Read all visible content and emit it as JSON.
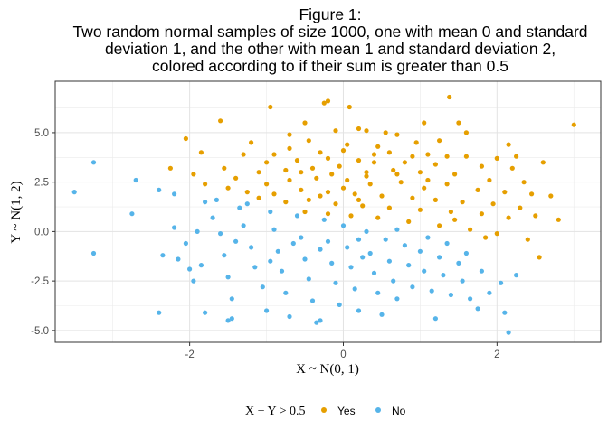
{
  "chart_data": {
    "type": "scatter",
    "title_lines": [
      "Figure 1:",
      "Two random normal samples of size 1000, one with mean 0 and standard",
      "deviation 1, and the other with mean 1 and standard deviation 2,",
      "colored according to if their sum is greater than 0.5"
    ],
    "xlabel": "X ~ N(0, 1)",
    "ylabel": "Y ~ N(1, 2)",
    "xlim": [
      -3.75,
      3.35
    ],
    "ylim": [
      -5.6,
      7.6
    ],
    "x_ticks": [
      -2,
      0,
      2
    ],
    "x_tick_labels": [
      "-2",
      "0",
      "2"
    ],
    "y_ticks": [
      -5.0,
      -2.5,
      0.0,
      2.5,
      5.0
    ],
    "y_tick_labels": [
      "-5.0",
      "-2.5",
      "0.0",
      "2.5",
      "5.0"
    ],
    "grid": true,
    "legend": {
      "position": "bottom",
      "title": "X + Y > 0.5",
      "entries": [
        {
          "label": "Yes",
          "color": "#E69F00"
        },
        {
          "label": "No",
          "color": "#56B4E9"
        }
      ]
    },
    "series": [
      {
        "name": "Yes",
        "color": "#E69F00",
        "points": [
          [
            -0.2,
            6.6
          ],
          [
            -0.25,
            6.5
          ],
          [
            0.08,
            6.3
          ],
          [
            1.38,
            6.8
          ],
          [
            3.0,
            5.4
          ],
          [
            -0.95,
            6.3
          ],
          [
            -1.6,
            5.6
          ],
          [
            -0.5,
            5.5
          ],
          [
            -0.1,
            5.1
          ],
          [
            0.2,
            5.2
          ],
          [
            0.3,
            5.1
          ],
          [
            1.05,
            5.5
          ],
          [
            1.5,
            5.5
          ],
          [
            0.55,
            5.0
          ],
          [
            0.7,
            4.9
          ],
          [
            -0.7,
            4.9
          ],
          [
            1.6,
            5.0
          ],
          [
            2.15,
            4.4
          ],
          [
            -2.05,
            4.7
          ],
          [
            -1.85,
            4.0
          ],
          [
            -1.2,
            4.5
          ],
          [
            -0.45,
            4.6
          ],
          [
            0.05,
            4.4
          ],
          [
            0.45,
            4.3
          ],
          [
            0.95,
            4.5
          ],
          [
            1.25,
            4.6
          ],
          [
            -0.7,
            4.2
          ],
          [
            -0.9,
            3.9
          ],
          [
            -0.3,
            4.0
          ],
          [
            0.0,
            4.1
          ],
          [
            0.6,
            4.0
          ],
          [
            1.1,
            3.9
          ],
          [
            1.6,
            3.8
          ],
          [
            2.0,
            3.7
          ],
          [
            2.25,
            3.8
          ],
          [
            2.6,
            3.5
          ],
          [
            -1.3,
            3.9
          ],
          [
            -1.0,
            3.5
          ],
          [
            -0.6,
            3.6
          ],
          [
            -0.2,
            3.7
          ],
          [
            0.2,
            3.6
          ],
          [
            0.4,
            3.5
          ],
          [
            0.8,
            3.5
          ],
          [
            1.2,
            3.4
          ],
          [
            1.35,
            3.8
          ],
          [
            1.8,
            3.3
          ],
          [
            2.2,
            3.2
          ],
          [
            -2.25,
            3.2
          ],
          [
            -1.55,
            3.2
          ],
          [
            -1.1,
            3.0
          ],
          [
            -0.75,
            3.1
          ],
          [
            -0.4,
            3.2
          ],
          [
            -0.05,
            3.3
          ],
          [
            0.3,
            3.0
          ],
          [
            0.65,
            3.1
          ],
          [
            1.0,
            3.0
          ],
          [
            1.45,
            2.9
          ],
          [
            1.9,
            2.6
          ],
          [
            2.35,
            2.5
          ],
          [
            -1.95,
            2.9
          ],
          [
            -1.8,
            2.4
          ],
          [
            -1.4,
            2.7
          ],
          [
            -1.0,
            2.4
          ],
          [
            -0.7,
            2.6
          ],
          [
            -0.35,
            2.7
          ],
          [
            0.05,
            2.6
          ],
          [
            0.35,
            2.4
          ],
          [
            0.75,
            2.5
          ],
          [
            1.05,
            2.2
          ],
          [
            1.35,
            2.4
          ],
          [
            1.75,
            2.1
          ],
          [
            2.1,
            2.0
          ],
          [
            2.45,
            1.9
          ],
          [
            2.7,
            1.8
          ],
          [
            -1.5,
            2.2
          ],
          [
            -1.25,
            2.0
          ],
          [
            -0.9,
            1.9
          ],
          [
            -0.55,
            2.1
          ],
          [
            -0.2,
            2.0
          ],
          [
            0.15,
            1.9
          ],
          [
            0.5,
            1.8
          ],
          [
            0.9,
            1.7
          ],
          [
            1.2,
            1.6
          ],
          [
            1.55,
            1.5
          ],
          [
            1.95,
            1.4
          ],
          [
            2.3,
            1.2
          ],
          [
            2.5,
            0.8
          ],
          [
            2.8,
            0.6
          ],
          [
            -1.1,
            1.7
          ],
          [
            -0.75,
            1.5
          ],
          [
            -0.45,
            1.6
          ],
          [
            -0.1,
            1.4
          ],
          [
            0.25,
            1.3
          ],
          [
            0.6,
            1.2
          ],
          [
            1.0,
            1.1
          ],
          [
            1.4,
            1.0
          ],
          [
            1.8,
            0.9
          ],
          [
            2.15,
            0.7
          ],
          [
            -0.5,
            1.0
          ],
          [
            -0.2,
            0.9
          ],
          [
            0.1,
            0.8
          ],
          [
            0.45,
            0.7
          ],
          [
            0.85,
            0.5
          ],
          [
            1.25,
            0.3
          ],
          [
            1.65,
            0.1
          ],
          [
            2.0,
            -0.1
          ],
          [
            2.4,
            -0.4
          ],
          [
            2.55,
            -1.3
          ],
          [
            1.85,
            -0.3
          ],
          [
            1.45,
            0.6
          ],
          [
            0.0,
            2.2
          ],
          [
            0.3,
            2.8
          ],
          [
            -0.15,
            2.9
          ],
          [
            0.2,
            1.6
          ],
          [
            0.7,
            2.9
          ],
          [
            -0.3,
            1.8
          ],
          [
            1.1,
            2.6
          ],
          [
            0.4,
            3.9
          ],
          [
            -0.55,
            3.0
          ],
          [
            0.9,
            3.8
          ]
        ]
      },
      {
        "name": "No",
        "color": "#56B4E9",
        "points": [
          [
            -3.5,
            2.0
          ],
          [
            -3.25,
            3.5
          ],
          [
            -2.7,
            2.6
          ],
          [
            -2.75,
            0.9
          ],
          [
            -3.25,
            -1.1
          ],
          [
            -2.4,
            2.1
          ],
          [
            -2.35,
            -1.2
          ],
          [
            -2.4,
            -4.1
          ],
          [
            -2.2,
            1.9
          ],
          [
            -2.2,
            0.2
          ],
          [
            -2.05,
            -0.6
          ],
          [
            -2.0,
            -1.9
          ],
          [
            -1.95,
            -2.5
          ],
          [
            -1.8,
            1.5
          ],
          [
            -1.7,
            0.7
          ],
          [
            -1.6,
            -0.1
          ],
          [
            -1.55,
            -1.2
          ],
          [
            -1.5,
            -2.3
          ],
          [
            -1.45,
            -3.4
          ],
          [
            -1.35,
            1.2
          ],
          [
            -1.3,
            0.3
          ],
          [
            -1.2,
            -0.8
          ],
          [
            -1.15,
            -1.8
          ],
          [
            -1.05,
            -2.8
          ],
          [
            -1.0,
            -4.0
          ],
          [
            -0.95,
            1.0
          ],
          [
            -0.9,
            0.1
          ],
          [
            -0.85,
            -1.0
          ],
          [
            -0.8,
            -2.0
          ],
          [
            -0.75,
            -3.1
          ],
          [
            -0.7,
            -4.3
          ],
          [
            -0.6,
            0.8
          ],
          [
            -0.55,
            -0.3
          ],
          [
            -0.5,
            -1.4
          ],
          [
            -0.45,
            -2.4
          ],
          [
            -0.4,
            -3.5
          ],
          [
            -0.35,
            -4.6
          ],
          [
            -0.25,
            0.6
          ],
          [
            -0.2,
            -0.5
          ],
          [
            -0.15,
            -1.6
          ],
          [
            -0.1,
            -2.6
          ],
          [
            -0.05,
            -3.7
          ],
          [
            0.0,
            0.3
          ],
          [
            0.05,
            -0.8
          ],
          [
            0.1,
            -1.8
          ],
          [
            0.15,
            -2.9
          ],
          [
            0.2,
            -4.0
          ],
          [
            0.3,
            0.0
          ],
          [
            0.35,
            -1.1
          ],
          [
            0.4,
            -2.1
          ],
          [
            0.45,
            -3.1
          ],
          [
            0.55,
            -0.4
          ],
          [
            0.6,
            -1.5
          ],
          [
            0.65,
            -2.5
          ],
          [
            0.7,
            -3.4
          ],
          [
            0.8,
            -0.7
          ],
          [
            0.85,
            -1.7
          ],
          [
            0.9,
            -2.8
          ],
          [
            1.0,
            -1.0
          ],
          [
            1.05,
            -2.0
          ],
          [
            1.15,
            -3.0
          ],
          [
            1.25,
            -1.3
          ],
          [
            1.3,
            -2.2
          ],
          [
            1.4,
            -3.2
          ],
          [
            1.5,
            -1.6
          ],
          [
            1.55,
            -2.5
          ],
          [
            1.65,
            -3.4
          ],
          [
            1.8,
            -2.0
          ],
          [
            1.9,
            -3.1
          ],
          [
            2.05,
            -2.6
          ],
          [
            2.1,
            -4.1
          ],
          [
            2.15,
            -5.1
          ],
          [
            2.25,
            -2.2
          ],
          [
            1.75,
            -3.9
          ],
          [
            -1.8,
            -4.1
          ],
          [
            -1.45,
            -4.4
          ],
          [
            -1.5,
            -4.5
          ],
          [
            -0.3,
            -4.5
          ],
          [
            0.5,
            -4.2
          ],
          [
            1.2,
            -4.4
          ],
          [
            -1.9,
            0.0
          ],
          [
            -1.65,
            1.6
          ],
          [
            -1.4,
            -0.5
          ],
          [
            -1.25,
            1.4
          ],
          [
            -0.65,
            -0.6
          ],
          [
            -0.3,
            -0.9
          ],
          [
            0.2,
            -0.4
          ],
          [
            0.7,
            0.1
          ],
          [
            1.1,
            -0.3
          ],
          [
            1.35,
            -0.6
          ],
          [
            -2.15,
            -1.4
          ],
          [
            -1.85,
            -1.7
          ],
          [
            -0.95,
            -1.5
          ],
          [
            0.25,
            -1.3
          ],
          [
            1.6,
            -1.1
          ]
        ]
      }
    ]
  }
}
